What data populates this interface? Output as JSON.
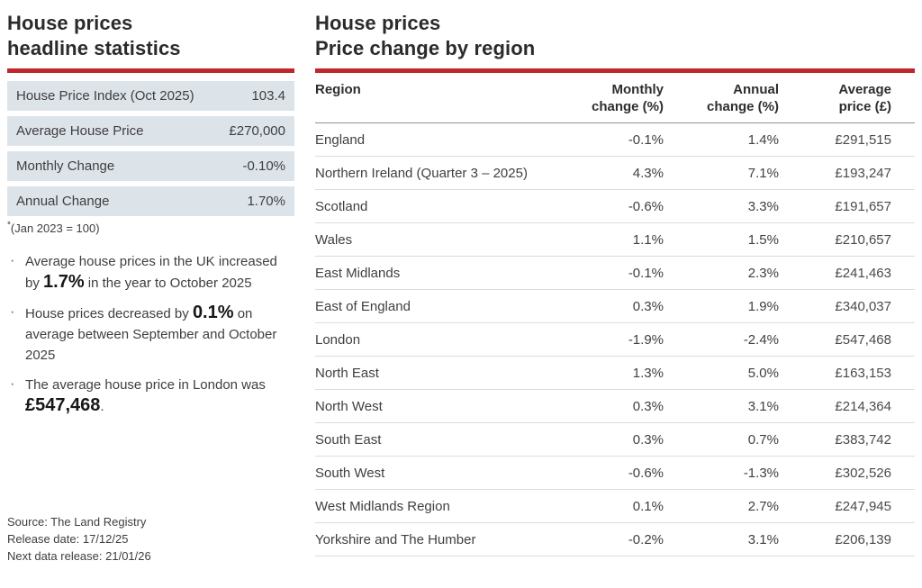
{
  "theme": {
    "accent_red": "#c0272d",
    "stat_row_bg": "#dde4e9",
    "body_text": "#3e3e40"
  },
  "left_panel": {
    "title_line1": "House prices",
    "title_line2": "headline statistics",
    "stats": [
      {
        "label": "House Price Index (Oct 2025)",
        "value": "103.4"
      },
      {
        "label": "Average House Price",
        "value": "£270,000"
      },
      {
        "label": "Monthly Change",
        "value": "-0.10%"
      },
      {
        "label": "Annual Change",
        "value": "1.70%"
      }
    ],
    "footnote_marker": "*",
    "footnote_text": "(Jan 2023 = 100)",
    "bullet_char": "·",
    "bullets": [
      {
        "pre": "Average house prices in the UK increased by ",
        "strong": "1.7%",
        "post": " in the year to October 2025"
      },
      {
        "pre": "House prices decreased by ",
        "strong": "0.1%",
        "post": " on average between September and October 2025"
      },
      {
        "pre": "The average house price in London was ",
        "strong": "£547,468",
        "post": "."
      }
    ],
    "source_lines": [
      "Source: The Land Registry",
      "Release date: 17/12/25",
      "Next data release: 21/01/26"
    ]
  },
  "right_panel": {
    "title_line1": "House prices",
    "title_line2": "Price change by region",
    "table": {
      "headers": {
        "region": "Region",
        "monthly_line1": "Monthly",
        "monthly_line2": "change (%)",
        "annual_line1": "Annual",
        "annual_line2": "change (%)",
        "price_line1": "Average",
        "price_line2": "price (£)"
      },
      "rows": [
        {
          "region": "England",
          "monthly": "-0.1%",
          "annual": "1.4%",
          "price": "£291,515"
        },
        {
          "region": "Northern Ireland (Quarter 3 – 2025)",
          "monthly": "4.3%",
          "annual": "7.1%",
          "price": "£193,247"
        },
        {
          "region": "Scotland",
          "monthly": "-0.6%",
          "annual": "3.3%",
          "price": "£191,657"
        },
        {
          "region": "Wales",
          "monthly": "1.1%",
          "annual": "1.5%",
          "price": "£210,657"
        },
        {
          "region": "East Midlands",
          "monthly": "-0.1%",
          "annual": "2.3%",
          "price": "£241,463"
        },
        {
          "region": "East of England",
          "monthly": "0.3%",
          "annual": "1.9%",
          "price": "£340,037"
        },
        {
          "region": "London",
          "monthly": "-1.9%",
          "annual": "-2.4%",
          "price": "£547,468"
        },
        {
          "region": "North East",
          "monthly": "1.3%",
          "annual": "5.0%",
          "price": "£163,153"
        },
        {
          "region": "North West",
          "monthly": "0.3%",
          "annual": "3.1%",
          "price": "£214,364"
        },
        {
          "region": "South East",
          "monthly": "0.3%",
          "annual": "0.7%",
          "price": "£383,742"
        },
        {
          "region": "South West",
          "monthly": "-0.6%",
          "annual": "-1.3%",
          "price": "£302,526"
        },
        {
          "region": "West Midlands Region",
          "monthly": "0.1%",
          "annual": "2.7%",
          "price": "£247,945"
        },
        {
          "region": "Yorkshire and The Humber",
          "monthly": "-0.2%",
          "annual": "3.1%",
          "price": "£206,139"
        }
      ]
    }
  }
}
